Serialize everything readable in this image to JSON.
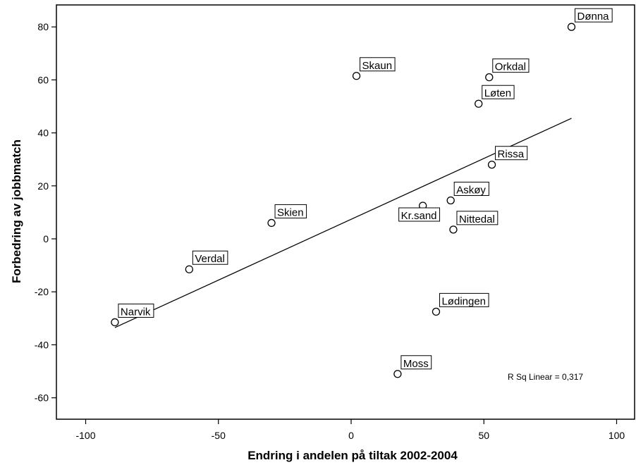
{
  "chart_data": {
    "type": "scatter",
    "xlabel": "Endring i andelen på tiltak 2002-2004",
    "ylabel": "Forbedring av jobbmatch",
    "xlim": [
      -110,
      107
    ],
    "ylim": [
      -68,
      88
    ],
    "xticks": [
      -100,
      -50,
      0,
      50,
      100
    ],
    "yticks": [
      -60,
      -40,
      -20,
      0,
      20,
      40,
      60,
      80
    ],
    "grid": false,
    "points": [
      {
        "label": "Dønna",
        "x": 83,
        "y": 80
      },
      {
        "label": "Skaun",
        "x": 2,
        "y": 61.5
      },
      {
        "label": "Orkdal",
        "x": 52,
        "y": 61
      },
      {
        "label": "Løten",
        "x": 48,
        "y": 51
      },
      {
        "label": "Rissa",
        "x": 53,
        "y": 28
      },
      {
        "label": "Askøy",
        "x": 37.5,
        "y": 14.5
      },
      {
        "label": "Kr.sand",
        "x": 27,
        "y": 12.5
      },
      {
        "label": "Nittedal",
        "x": 38.5,
        "y": 3.5
      },
      {
        "label": "Skien",
        "x": -30,
        "y": 6
      },
      {
        "label": "Verdal",
        "x": -61,
        "y": -11.5
      },
      {
        "label": "Narvik",
        "x": -89,
        "y": -31.5
      },
      {
        "label": "Lødingen",
        "x": 32,
        "y": -27.5
      },
      {
        "label": "Moss",
        "x": 17.5,
        "y": -51
      }
    ],
    "fit_line": {
      "x": [
        -89,
        83
      ],
      "y": [
        -33.5,
        45.5
      ]
    },
    "annotation": "R Sq Linear = 0,317"
  }
}
